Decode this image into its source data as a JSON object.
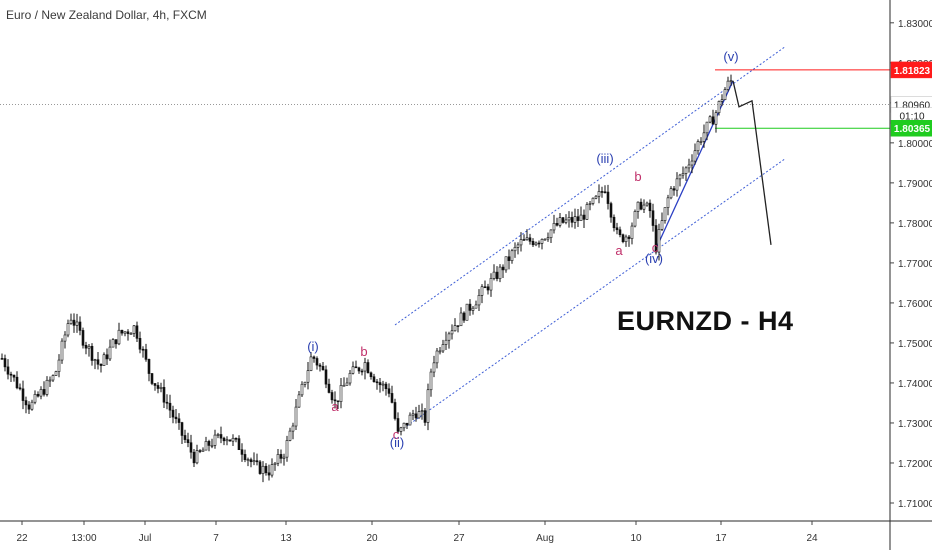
{
  "chart_data": {
    "type": "candlestick",
    "title": "Euro / New Zealand Dollar, 4h, FXCM",
    "annotation_title": "EURNZD - H4",
    "x_tick_labels": [
      "22",
      "13:00",
      "Jul",
      "7",
      "13",
      "20",
      "27",
      "Aug",
      "10",
      "17",
      "24"
    ],
    "y_tick_values": [
      1.71,
      1.72,
      1.73,
      1.74,
      1.75,
      1.76,
      1.77,
      1.78,
      1.79,
      1.8,
      1.81,
      1.82,
      1.83
    ],
    "y_tick_labels": [
      "1.71000",
      "1.72000",
      "1.73000",
      "1.74000",
      "1.75000",
      "1.76000",
      "1.77000",
      "1.78000",
      "1.79000",
      "1.80000",
      "1.81000",
      "1.82000",
      "1.83000"
    ],
    "ylim": [
      1.7055,
      1.8352
    ],
    "price_markers": [
      {
        "label": "1.81823",
        "value": 1.81823,
        "color": "#ff1a1a"
      },
      {
        "label": "1.80960",
        "value": 1.8096,
        "color": "#ffffff"
      },
      {
        "label": "01:10",
        "value": 1.8068,
        "color": "#ffffff"
      },
      {
        "label": "1.80365",
        "value": 1.80365,
        "color": "#1fcc1f"
      }
    ],
    "horizontal_lines": [
      {
        "value": 1.81823,
        "color": "#ff1a1a"
      },
      {
        "value": 1.80365,
        "color": "#1fcc1f"
      },
      {
        "value": 1.8096,
        "color": "#999999"
      }
    ],
    "wave_labels": [
      {
        "text": "(i)",
        "x": 313,
        "y": 1.748,
        "color": "#2a3fb0"
      },
      {
        "text": "b",
        "x": 364,
        "y": 1.7467,
        "color": "#c0306a"
      },
      {
        "text": "a",
        "x": 335,
        "y": 1.733,
        "color": "#c0306a"
      },
      {
        "text": "c",
        "x": 396,
        "y": 1.726,
        "color": "#c0306a"
      },
      {
        "text": "(ii)",
        "x": 397,
        "y": 1.724,
        "color": "#2a3fb0"
      },
      {
        "text": "(iii)",
        "x": 605,
        "y": 1.795,
        "color": "#2a3fb0"
      },
      {
        "text": "b",
        "x": 638,
        "y": 1.7905,
        "color": "#c0306a"
      },
      {
        "text": "a",
        "x": 619,
        "y": 1.772,
        "color": "#c0306a"
      },
      {
        "text": "c",
        "x": 655,
        "y": 1.7727,
        "color": "#c0306a"
      },
      {
        "text": "(iv)",
        "x": 654,
        "y": 1.77,
        "color": "#2a3fb0"
      },
      {
        "text": "(v)",
        "x": 731,
        "y": 1.8205,
        "color": "#2a3fb0"
      }
    ],
    "trend_lines": [
      {
        "color": "#3f5fd6",
        "dash": true,
        "points": [
          [
            395,
            1.7545
          ],
          [
            785,
            1.824
          ]
        ]
      },
      {
        "color": "#3f5fd6",
        "dash": true,
        "points": [
          [
            397,
            1.7275
          ],
          [
            785,
            1.796
          ]
        ]
      },
      {
        "color": "#2b3fc4",
        "dash": false,
        "points": [
          [
            655,
            1.773
          ],
          [
            733,
            1.8155
          ]
        ]
      },
      {
        "color": "#222222",
        "dash": false,
        "points": [
          [
            733,
            1.8155
          ],
          [
            739,
            1.809
          ],
          [
            752,
            1.8105
          ],
          [
            771,
            1.7745
          ]
        ]
      }
    ],
    "path_x": [
      0,
      30,
      55,
      70,
      85,
      100,
      118,
      135,
      150,
      165,
      180,
      195,
      210,
      225,
      240,
      255,
      270,
      285,
      298,
      312,
      325,
      335,
      350,
      365,
      378,
      390,
      398,
      415,
      425,
      432,
      445,
      460,
      480,
      500,
      520,
      540,
      560,
      580,
      597,
      605,
      618,
      628,
      640,
      650,
      656,
      670,
      685,
      700,
      715,
      726,
      733
    ],
    "path_y": [
      1.747,
      1.734,
      1.742,
      1.757,
      1.75,
      1.744,
      1.752,
      1.754,
      1.742,
      1.736,
      1.728,
      1.721,
      1.725,
      1.727,
      1.724,
      1.719,
      1.718,
      1.723,
      1.735,
      1.747,
      1.742,
      1.735,
      1.742,
      1.745,
      1.74,
      1.738,
      1.727,
      1.733,
      1.731,
      1.745,
      1.752,
      1.756,
      1.762,
      1.768,
      1.775,
      1.776,
      1.78,
      1.781,
      1.786,
      1.789,
      1.776,
      1.777,
      1.785,
      1.783,
      1.774,
      1.788,
      1.793,
      1.801,
      1.807,
      1.814,
      1.816
    ]
  }
}
